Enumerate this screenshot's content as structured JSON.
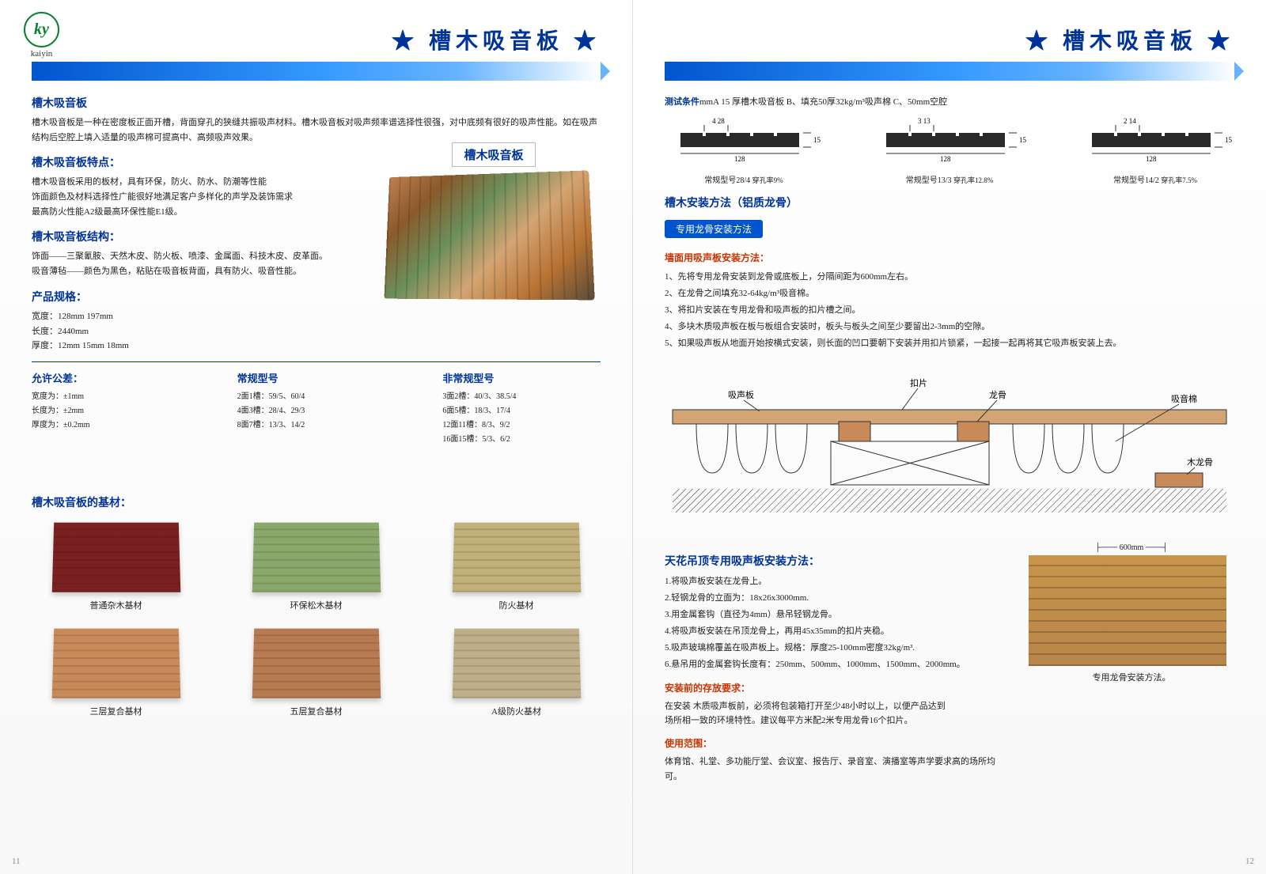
{
  "logo": {
    "initials": "ky",
    "name": "kaiyin"
  },
  "title": "槽木吸音板",
  "left": {
    "s1_title": "槽木吸音板",
    "s1_body": "槽木吸音板是一种在密度板正面开槽，背面穿孔的狭缝共振吸声材料。槽木吸音板对吸声频率谱选择性很强，对中底频有很好的吸声性能。如在吸声结构后空腔上填入适量的吸声棉可提高中、高频吸声效果。",
    "s2_title": "槽木吸音板特点：",
    "s2_body": "槽木吸音板采用的板材，具有环保，防火、防水、防潮等性能\n饰面颜色及材料选择性广能很好地满足客户多样化的声学及装饰需求\n最高防火性能A2级最高环保性能E1级。",
    "s3_title": "槽木吸音板结构：",
    "s3_body": "饰面——三聚氰胺、天然木皮、防火板、喷漆、金属面、科技木皮、皮革面。\n吸音薄毡——颜色为黑色，粘贴在吸音板背面，具有防火、吸音性能。",
    "s4_title": "产品规格：",
    "s4_body": "宽度：128mm 197mm\n长度：2440mm\n厚度：12mm 15mm 18mm",
    "tol_title": "允许公差：",
    "tol_body": "宽度为：±1mm\n长度为：±2mm\n厚度为：±0.2mm",
    "std_title": "常规型号",
    "std_body": "2面1槽：59/5、60/4\n4面3槽：28/4、29/3\n8面7槽：13/3、14/2",
    "nstd_title": "非常规型号",
    "nstd_body": "3面2槽：40/3、38.5/4\n6面5槽：18/3、17/4\n12面11槽：8/3、9/2\n16面15槽：5/3、6/2",
    "product_label": "槽木吸音板",
    "swatch_title": "槽木吸音板的基材：",
    "swatches": [
      {
        "label": "普通杂木基材",
        "color": "#7a2020"
      },
      {
        "label": "环保松木基材",
        "color": "#8aa86a"
      },
      {
        "label": "防火基材",
        "color": "#c2b07a"
      },
      {
        "label": "三层复合基材",
        "color": "#c98a5a"
      },
      {
        "label": "五层复合基材",
        "color": "#b87a50"
      },
      {
        "label": "A级防火基材",
        "color": "#bfae8a"
      }
    ],
    "page_num": "11"
  },
  "right": {
    "test_prefix": "测试条件",
    "test_body": "mmA  15  厚槽木吸音板 B、填充50厚32kg/m³吸声棉  C、50mm空腔",
    "profiles": [
      {
        "top": "4   28",
        "side": "15",
        "width": "128",
        "model": "常规型号28/4",
        "rate": "穿孔率9%"
      },
      {
        "top": "3  13",
        "side": "15",
        "width": "128",
        "model": "常规型号13/3",
        "rate": "穿孔率12.8%"
      },
      {
        "top": "2  14",
        "side": "15",
        "width": "128",
        "model": "常规型号14/2",
        "rate": "穿孔率7.5%"
      }
    ],
    "install_title": "槽木安装方法（铝质龙骨）",
    "pill": "专用龙骨安装方法",
    "wall_title": "墙面用吸声板安装方法：",
    "wall_steps": "1、先将专用龙骨安装到龙骨或底板上，分隔间距为600mm左右。\n2、在龙骨之间填充32-64kg/m³吸音棉。\n3、将扣片安装在专用龙骨和吸声板的扣片槽之间。\n4、多块木质吸声板在板与板组合安装时，板头与板头之间至少要留出2-3mm的空隙。\n5、如果吸声板从地面开始按横式安装，则长面的凹口要朝下安装并用扣片锁紧，一起接一起再将其它吸声板安装上去。",
    "diagram_labels": {
      "panel": "吸声板",
      "clip": "扣片",
      "keel": "龙骨",
      "wool": "吸音棉",
      "wood_keel": "木龙骨"
    },
    "ceiling_title": "天花吊顶专用吸声板安装方法：",
    "ceiling_steps": "1.将吸声板安装在龙骨上。\n2.轻钢龙骨的立面为：18x26x3000mm.\n3.用金属套钩（直径为4mm）悬吊轻钢龙骨。\n4.将吸声板安装在吊顶龙骨上，再用45x35mm的扣片夹稳。\n5.吸声玻璃棉覆盖在吸声板上。规格：厚度25-100mm密度32kg/m³.\n6.悬吊用的金属套钩长度有：250mm、500mm、1000mm、1500mm、2000mm。",
    "storage_title": "安装前的存放要求：",
    "storage_body": "在安装 木质吸声板前，必须将包装箱打开至少48小时以上，以便产品达到\n场所相一致的环境特性。建议每平方米配2米专用龙骨16个扣片。",
    "usage_title": "使用范围：",
    "usage_body": "体育馆、礼堂、多功能厅堂、会议室、报告厅、录音室、演播室等声学要求高的场所均可。",
    "ceiling_dim": "600mm",
    "ceiling_caption": "专用龙骨安装方法。",
    "page_num": "12"
  },
  "colors": {
    "brand_blue": "#003399",
    "accent_red": "#cc3300"
  }
}
